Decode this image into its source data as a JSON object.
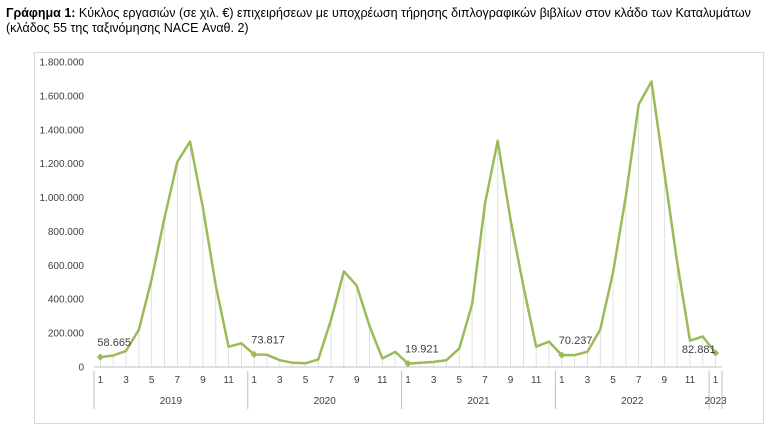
{
  "caption": {
    "prefix": "Γράφημα 1:",
    "text": " Κύκλος εργασιών (σε χιλ. €) επιχειρήσεων με υποχρέωση τήρησης διπλογραφικών βιβλίων στον κλάδο των Καταλυμάτων (κλάδος 55 της ταξινόμησης NACE Αναθ. 2)"
  },
  "chart_data": {
    "type": "line",
    "title": "",
    "xlabel": "",
    "ylabel": "",
    "ylim": [
      0,
      1800000
    ],
    "y_ticks": [
      "0",
      "200.000",
      "400.000",
      "600.000",
      "800.000",
      "1.000.000",
      "1.200.000",
      "1.400.000",
      "1.600.000",
      "1.800.000"
    ],
    "grid": false,
    "series_color": "#9bbb59",
    "years": [
      {
        "label": "2019",
        "months": 12
      },
      {
        "label": "2020",
        "months": 12
      },
      {
        "label": "2021",
        "months": 12
      },
      {
        "label": "2022",
        "months": 12
      },
      {
        "label": "2023",
        "months": 1
      }
    ],
    "x_tick_labels": [
      "1",
      "",
      "3",
      "",
      "5",
      "",
      "7",
      "",
      "9",
      "",
      "11",
      "",
      "1",
      "",
      "3",
      "",
      "5",
      "",
      "7",
      "",
      "9",
      "",
      "11",
      "",
      "1",
      "",
      "3",
      "",
      "5",
      "",
      "7",
      "",
      "9",
      "",
      "11",
      "",
      "1",
      "",
      "3",
      "",
      "5",
      "",
      "7",
      "",
      "9",
      "",
      "11",
      "",
      "1"
    ],
    "values": [
      58665,
      68000,
      95000,
      220000,
      520000,
      880000,
      1210000,
      1330000,
      940000,
      480000,
      120000,
      140000,
      73817,
      72000,
      40000,
      25000,
      22000,
      45000,
      280000,
      565000,
      480000,
      240000,
      50000,
      90000,
      19921,
      25000,
      30000,
      40000,
      110000,
      370000,
      960000,
      1335000,
      870000,
      480000,
      120000,
      150000,
      70237,
      70000,
      90000,
      220000,
      560000,
      1010000,
      1550000,
      1685000,
      1150000,
      620000,
      155000,
      180000,
      82881
    ],
    "data_labels": [
      {
        "index": 0,
        "text": "58.665"
      },
      {
        "index": 12,
        "text": "73.817"
      },
      {
        "index": 24,
        "text": "19.921"
      },
      {
        "index": 36,
        "text": "70.237"
      },
      {
        "index": 48,
        "text": "82.881"
      }
    ]
  }
}
